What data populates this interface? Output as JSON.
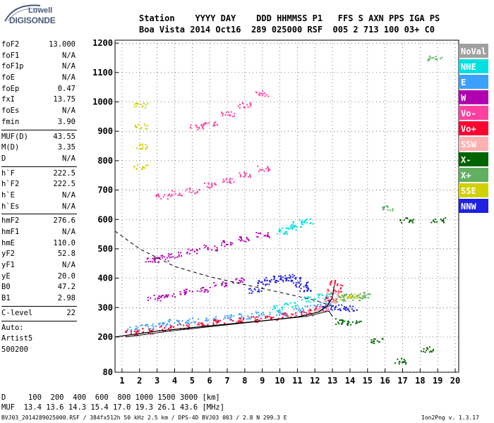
{
  "logo": {
    "brand": "Lowell",
    "product": "DIGISONDE"
  },
  "header": {
    "line1": "Station    YYYY DAY    DDD HHMMSS P1   FFS S AXN PPS IGA PS",
    "line2": "Boa Vista 2014 Oct16  289 025000 RSF  005 2 713 100 03+ C0"
  },
  "params": [
    {
      "label": "foF2",
      "value": "13.000"
    },
    {
      "label": "foF1",
      "value": "N/A"
    },
    {
      "label": "foF1p",
      "value": "N/A"
    },
    {
      "label": "foE",
      "value": "N/A"
    },
    {
      "label": "foEp",
      "value": "0.47"
    },
    {
      "label": "fxI",
      "value": "13.75"
    },
    {
      "label": "foEs",
      "value": "N/A"
    },
    {
      "label": "fmin",
      "value": "3.90",
      "sep": true
    },
    {
      "label": "MUF(D)",
      "value": "43.55"
    },
    {
      "label": "M(D)",
      "value": "3.35"
    },
    {
      "label": "D",
      "value": "N/A",
      "sep": true
    },
    {
      "label": "h`F",
      "value": "222.5"
    },
    {
      "label": "h`F2",
      "value": "222.5"
    },
    {
      "label": "h`E",
      "value": "N/A"
    },
    {
      "label": "h`Es",
      "value": "N/A",
      "sep": true
    },
    {
      "label": "hmF2",
      "value": "276.6"
    },
    {
      "label": "hmF1",
      "value": "N/A"
    },
    {
      "label": "hmE",
      "value": "110.0"
    },
    {
      "label": "yF2",
      "value": "52.8"
    },
    {
      "label": "yF1",
      "value": "N/A"
    },
    {
      "label": "yE",
      "value": "20.0"
    },
    {
      "label": "B0",
      "value": "47.2"
    },
    {
      "label": "B1",
      "value": "2.98",
      "sep": true
    },
    {
      "label": "C-level",
      "value": "22",
      "sep": true
    },
    {
      "label": "Auto:",
      "value": ""
    },
    {
      "label": "Artist5",
      "value": ""
    },
    {
      "label": "500200",
      "value": ""
    }
  ],
  "footer": {
    "distance_row": "D     100  200  400  600  800 1000 1500 3000 [km]",
    "muf_row": "MUF  13.4 13.6 14.3 15.4 17.0 19.3 26.1 43.6 [MHz]",
    "info": "BVJ03_2014289025000.RSF / 384fx512h 50 kHz 2.5 km / DPS-4D BVJ03 003 / 2.8 N 299.3 E",
    "version": "Ion2Png v. 1.3.17"
  },
  "legend": [
    {
      "label": "NoVal",
      "color": "#a0a0a0"
    },
    {
      "label": "NNE",
      "color": "#00e0e0"
    },
    {
      "label": "E",
      "color": "#3ca0ff"
    },
    {
      "label": "W",
      "color": "#b000b0"
    },
    {
      "label": "Vo-",
      "color": "#ff40a0"
    },
    {
      "label": "Vo+",
      "color": "#ff0030"
    },
    {
      "label": "SSW",
      "color": "#ffb0b0"
    },
    {
      "label": "X-",
      "color": "#006400"
    },
    {
      "label": "X+",
      "color": "#60b060"
    },
    {
      "label": "SSE",
      "color": "#d0d000"
    },
    {
      "label": "NNW",
      "color": "#2020e0"
    }
  ],
  "chart_data": {
    "type": "scatter",
    "xlim": [
      0.6,
      20.2
    ],
    "ylim": [
      80,
      1210
    ],
    "xticks": [
      1,
      2,
      3,
      4,
      5,
      6,
      7,
      8,
      9,
      10,
      11,
      12,
      13,
      14,
      15,
      16,
      17,
      18,
      19,
      20
    ],
    "yticks": [
      80,
      200,
      300,
      400,
      500,
      600,
      700,
      800,
      900,
      1000,
      1100,
      1200
    ],
    "grid": true,
    "series": [
      {
        "name": "E",
        "color": "#3ca0ff",
        "points": [
          [
            1.6,
            230
          ],
          [
            2.4,
            238
          ],
          [
            3.2,
            245
          ],
          [
            4.0,
            252
          ],
          [
            5.0,
            258
          ],
          [
            6.0,
            262
          ],
          [
            7.0,
            268
          ],
          [
            8.0,
            272
          ],
          [
            9.0,
            278
          ],
          [
            10.0,
            285
          ],
          [
            11.0,
            292
          ],
          [
            11.8,
            300
          ],
          [
            12.5,
            315
          ]
        ]
      },
      {
        "name": "Vo+",
        "color": "#ff0030",
        "points": [
          [
            1.5,
            215
          ],
          [
            2.5,
            222
          ],
          [
            3.5,
            230
          ],
          [
            4.5,
            238
          ],
          [
            5.5,
            246
          ],
          [
            6.5,
            252
          ],
          [
            7.5,
            258
          ],
          [
            8.5,
            262
          ],
          [
            9.5,
            268
          ],
          [
            10.5,
            275
          ],
          [
            11.5,
            285
          ],
          [
            12.3,
            298
          ],
          [
            12.9,
            330
          ],
          [
            13.1,
            360
          ],
          [
            13.2,
            385
          ]
        ]
      },
      {
        "name": "NNW",
        "color": "#2020e0",
        "points": [
          [
            8.6,
            360
          ],
          [
            9.0,
            385
          ],
          [
            9.5,
            395
          ],
          [
            10.0,
            400
          ],
          [
            10.4,
            405
          ],
          [
            10.8,
            395
          ],
          [
            11.2,
            380
          ],
          [
            11.4,
            365
          ],
          [
            12.8,
            300
          ],
          [
            13.5,
            302
          ],
          [
            14.0,
            298
          ]
        ]
      },
      {
        "name": "W",
        "color": "#b000b0",
        "points": [
          [
            2.8,
            335
          ],
          [
            3.6,
            342
          ],
          [
            4.6,
            355
          ],
          [
            5.6,
            365
          ],
          [
            6.6,
            380
          ],
          [
            7.6,
            395
          ],
          [
            2.7,
            465
          ],
          [
            3.2,
            470
          ],
          [
            4.0,
            480
          ],
          [
            5.0,
            495
          ],
          [
            6.0,
            505
          ],
          [
            7.0,
            520
          ],
          [
            8.0,
            535
          ],
          [
            9.0,
            550
          ]
        ]
      },
      {
        "name": "Vo-",
        "color": "#ff40a0",
        "points": [
          [
            3.2,
            680
          ],
          [
            4.0,
            690
          ],
          [
            5.0,
            700
          ],
          [
            6.0,
            720
          ],
          [
            7.0,
            735
          ],
          [
            8.0,
            755
          ],
          [
            9.0,
            775
          ],
          [
            5.2,
            915
          ],
          [
            6.0,
            930
          ],
          [
            7.0,
            960
          ],
          [
            8.0,
            990
          ],
          [
            9.0,
            1030
          ]
        ]
      },
      {
        "name": "NNE",
        "color": "#00e0e0",
        "points": [
          [
            10.0,
            560
          ],
          [
            10.5,
            575
          ],
          [
            11.0,
            585
          ],
          [
            11.5,
            595
          ],
          [
            9.8,
            300
          ],
          [
            10.6,
            310
          ],
          [
            11.6,
            330
          ],
          [
            12.5,
            340
          ]
        ]
      },
      {
        "name": "SSE",
        "color": "#d0d000",
        "points": [
          [
            2.05,
            780
          ],
          [
            2.05,
            850
          ],
          [
            2.05,
            920
          ],
          [
            2.05,
            990
          ],
          [
            13.8,
            335
          ],
          [
            14.3,
            340
          ]
        ]
      },
      {
        "name": "X-",
        "color": "#006400",
        "points": [
          [
            13.5,
            255
          ],
          [
            14.2,
            250
          ],
          [
            15.5,
            190
          ],
          [
            16.8,
            120
          ],
          [
            17.2,
            600
          ],
          [
            18.4,
            160
          ],
          [
            19.0,
            600
          ]
        ]
      },
      {
        "name": "X+",
        "color": "#60b060",
        "points": [
          [
            13.3,
            330
          ],
          [
            13.7,
            340
          ],
          [
            14.5,
            335
          ],
          [
            14.9,
            345
          ],
          [
            16.2,
            640
          ],
          [
            18.8,
            1150
          ]
        ]
      },
      {
        "name": "SSW",
        "color": "#ffb0b0",
        "points": [
          [
            12.0,
            290
          ],
          [
            12.4,
            300
          ],
          [
            12.8,
            325
          ],
          [
            13.0,
            350
          ]
        ]
      }
    ]
  }
}
